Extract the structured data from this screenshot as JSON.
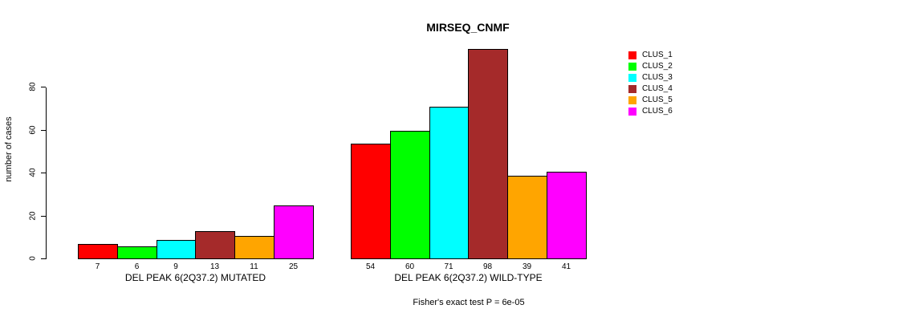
{
  "chart_data": {
    "type": "bar",
    "title": "MIRSEQ_CNMF",
    "ylabel": "number of cases",
    "yticks": [
      0,
      20,
      40,
      60,
      80
    ],
    "ylim": [
      0,
      100
    ],
    "grid": false,
    "legend_position": "right",
    "annotation": "Fisher's exact test P = 6e-05",
    "series": [
      {
        "name": "CLUS_1",
        "color": "#FF0000"
      },
      {
        "name": "CLUS_2",
        "color": "#00FF00"
      },
      {
        "name": "CLUS_3",
        "color": "#00FFFF"
      },
      {
        "name": "CLUS_4",
        "color": "#A52A2A"
      },
      {
        "name": "CLUS_5",
        "color": "#FFA500"
      },
      {
        "name": "CLUS_6",
        "color": "#FF00FF"
      }
    ],
    "groups": [
      {
        "label": "DEL PEAK  6(2Q37.2) MUTATED",
        "values": [
          7,
          6,
          9,
          13,
          11,
          25
        ]
      },
      {
        "label": "DEL PEAK  6(2Q37.2) WILD-TYPE",
        "values": [
          54,
          60,
          71,
          98,
          39,
          41
        ]
      }
    ]
  }
}
